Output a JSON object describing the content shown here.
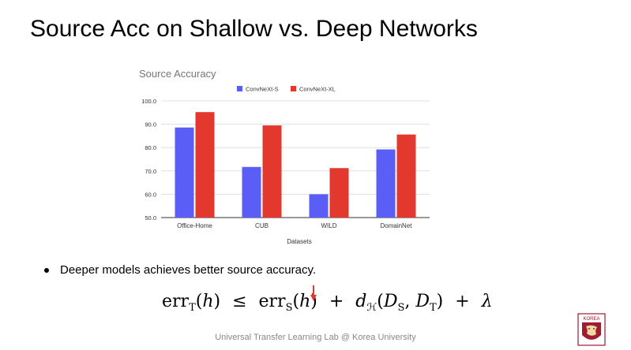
{
  "slide": {
    "title": "Source Acc on Shallow vs. Deep Networks",
    "bullet": "Deeper models achieves better source accuracy.",
    "footer": "Universal Transfer Learning Lab @ Korea University",
    "logo_text": "KOREA"
  },
  "formula": {
    "err": "err",
    "sub_t": "T",
    "sub_s": "S",
    "h": "h",
    "leq": "≤",
    "plus": "+",
    "d": "d",
    "sub_h": "ℋ",
    "D": "D",
    "lambda": "λ"
  },
  "colors": {
    "series_1": "#5b5ef6",
    "series_2": "#e2382e",
    "arrow": "#e2382e",
    "logo": "#a11c2e"
  },
  "chart_data": {
    "type": "bar",
    "title": "Source Accuracy",
    "xlabel": "Datasets",
    "ylabel": "",
    "categories": [
      "Office-Home",
      "CUB",
      "WILD",
      "DomainNet"
    ],
    "series": [
      {
        "name": "ConvNeXt-S",
        "values": [
          88.6,
          71.7,
          60.0,
          79.2
        ]
      },
      {
        "name": "ConvNeXt-XL",
        "values": [
          95.2,
          89.5,
          71.2,
          85.6
        ]
      }
    ],
    "ylim": [
      50,
      100
    ],
    "yticks": [
      "50.0",
      "60.0",
      "70.0",
      "80.0",
      "90.0",
      "100.0"
    ],
    "grid": true,
    "legend_position": "top"
  }
}
